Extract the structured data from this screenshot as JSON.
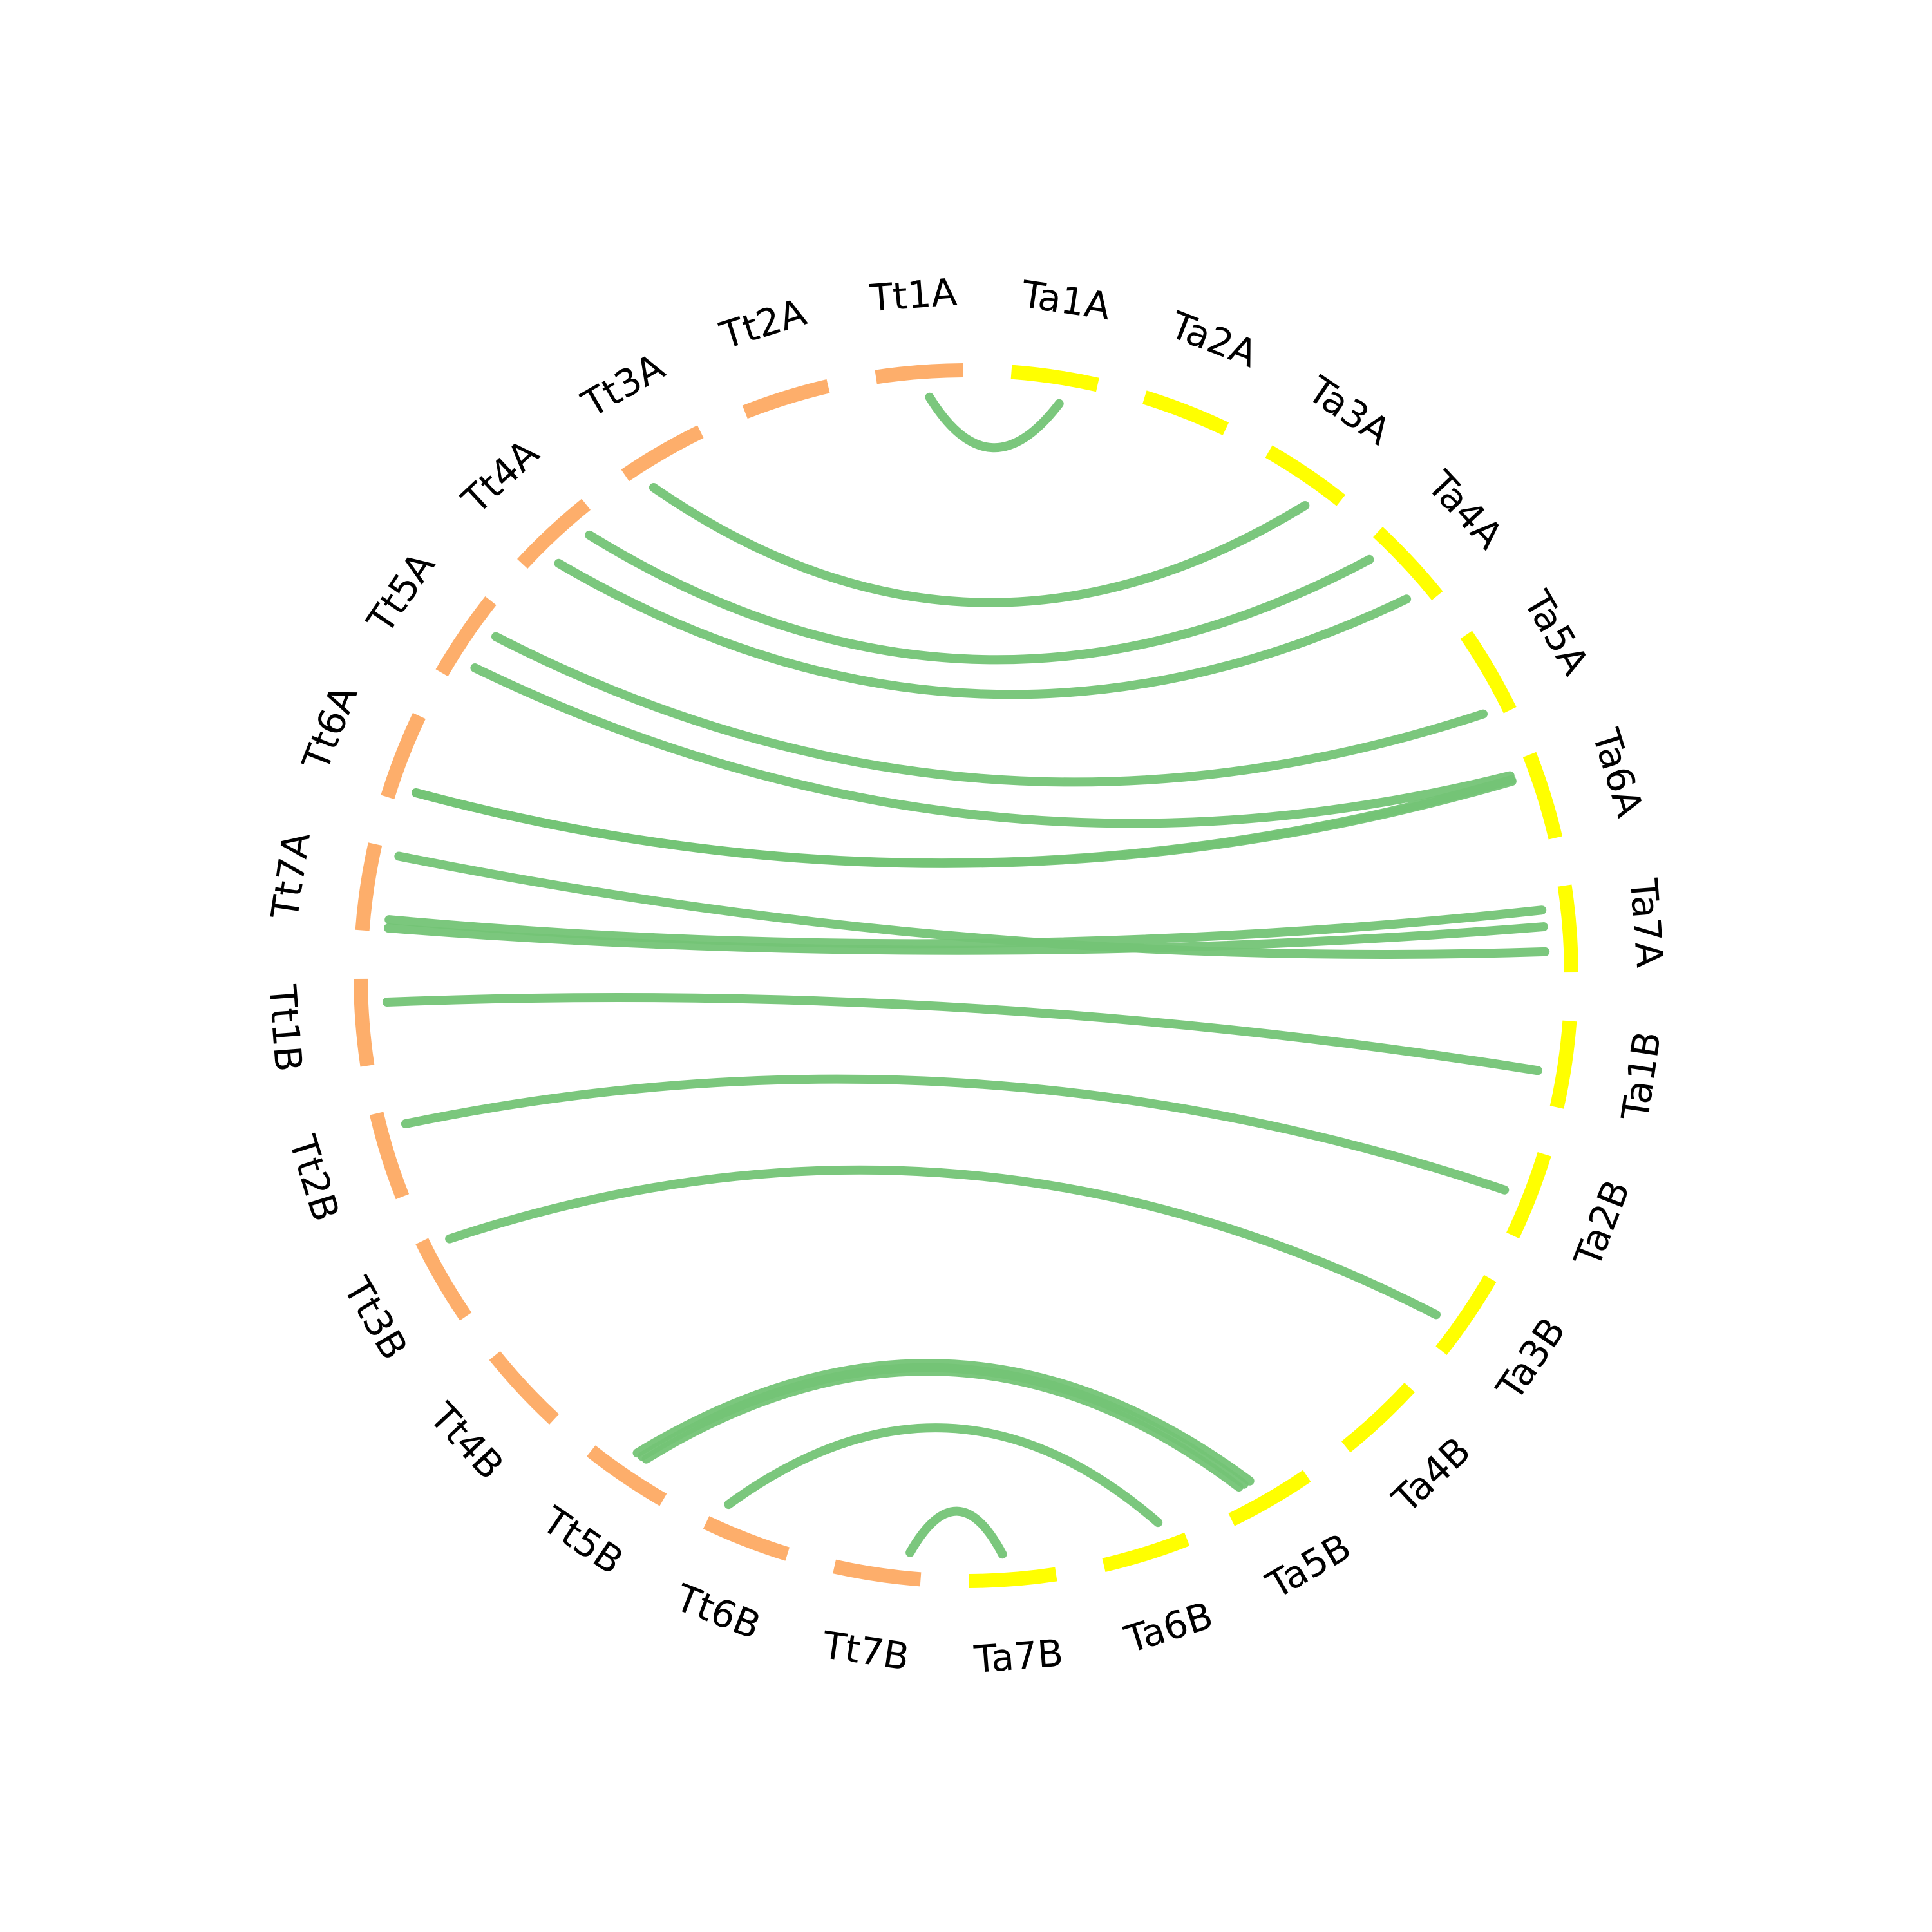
{
  "chart_data": {
    "type": "circos",
    "groups": [
      {
        "name": "Tt",
        "color": "#fdae6b"
      },
      {
        "name": "Ta",
        "color": "#ffff00"
      }
    ],
    "link_color": "#74c476",
    "chromosomes": [
      {
        "label": "Ta1A",
        "group": "Ta"
      },
      {
        "label": "Ta2A",
        "group": "Ta"
      },
      {
        "label": "Ta3A",
        "group": "Ta"
      },
      {
        "label": "Ta4A",
        "group": "Ta"
      },
      {
        "label": "Ta5A",
        "group": "Ta"
      },
      {
        "label": "Ta6A",
        "group": "Ta"
      },
      {
        "label": "Ta7A",
        "group": "Ta"
      },
      {
        "label": "Ta1B",
        "group": "Ta"
      },
      {
        "label": "Ta2B",
        "group": "Ta"
      },
      {
        "label": "Ta3B",
        "group": "Ta"
      },
      {
        "label": "Ta4B",
        "group": "Ta"
      },
      {
        "label": "Ta5B",
        "group": "Ta"
      },
      {
        "label": "Ta6B",
        "group": "Ta"
      },
      {
        "label": "Ta7B",
        "group": "Ta"
      },
      {
        "label": "Tt7B",
        "group": "Tt"
      },
      {
        "label": "Tt6B",
        "group": "Tt"
      },
      {
        "label": "Tt5B",
        "group": "Tt"
      },
      {
        "label": "Tt4B",
        "group": "Tt"
      },
      {
        "label": "Tt3B",
        "group": "Tt"
      },
      {
        "label": "Tt2B",
        "group": "Tt"
      },
      {
        "label": "Tt1B",
        "group": "Tt"
      },
      {
        "label": "Tt7A",
        "group": "Tt"
      },
      {
        "label": "Tt6A",
        "group": "Tt"
      },
      {
        "label": "Tt5A",
        "group": "Tt"
      },
      {
        "label": "Tt4A",
        "group": "Tt"
      },
      {
        "label": "Tt3A",
        "group": "Tt"
      },
      {
        "label": "Tt2A",
        "group": "Tt"
      },
      {
        "label": "Tt1A",
        "group": "Tt"
      }
    ],
    "links": [
      {
        "from": "Tt1A",
        "from_pos": 0.6,
        "to": "Ta1A",
        "to_pos": 0.6
      },
      {
        "from": "Tt3A",
        "from_pos": 0.2,
        "to": "Ta3A",
        "to_pos": 0.7
      },
      {
        "from": "Tt4A",
        "from_pos": 0.8,
        "to": "Ta4A",
        "to_pos": 0.15
      },
      {
        "from": "Tt4A",
        "from_pos": 0.3,
        "to": "Ta4A",
        "to_pos": 0.8
      },
      {
        "from": "Tt5A",
        "from_pos": 0.7,
        "to": "Ta5A",
        "to_pos": 0.9
      },
      {
        "from": "Tt5A",
        "from_pos": 0.25,
        "to": "Ta6A",
        "to_pos": 0.15
      },
      {
        "from": "Tt6A",
        "from_pos": 0.15,
        "to": "Ta6A",
        "to_pos": 0.2
      },
      {
        "from": "Tt6A",
        "from_pos": 0.15,
        "to": "Ta6A",
        "to_pos": 0.22
      },
      {
        "from": "Tt7A",
        "from_pos": 0.92,
        "to": "Ta7A",
        "to_pos": 0.75
      },
      {
        "from": "Tt7A",
        "from_pos": 0.15,
        "to": "Ta7A",
        "to_pos": 0.25
      },
      {
        "from": "Tt7A",
        "from_pos": 0.05,
        "to": "Ta7A",
        "to_pos": 0.45
      },
      {
        "from": "Tt1B",
        "from_pos": 0.72,
        "to": "Ta1B",
        "to_pos": 0.62
      },
      {
        "from": "Tt2B",
        "from_pos": 0.8,
        "to": "Ta2B",
        "to_pos": 0.55
      },
      {
        "from": "Tt3B",
        "from_pos": 0.88,
        "to": "Ta3B",
        "to_pos": 0.7
      },
      {
        "from": "Tt5B",
        "from_pos": 0.55,
        "to": "Ta5B",
        "to_pos": 0.6
      },
      {
        "from": "Tt5B",
        "from_pos": 0.48,
        "to": "Ta5B",
        "to_pos": 0.68
      },
      {
        "from": "Tt5B",
        "from_pos": 0.42,
        "to": "Ta5B",
        "to_pos": 0.75
      },
      {
        "from": "Tt6B",
        "from_pos": 0.85,
        "to": "Ta6B",
        "to_pos": 0.25
      },
      {
        "from": "Tt7B",
        "from_pos": 0.15,
        "to": "Ta7B",
        "to_pos": 0.6
      }
    ]
  }
}
